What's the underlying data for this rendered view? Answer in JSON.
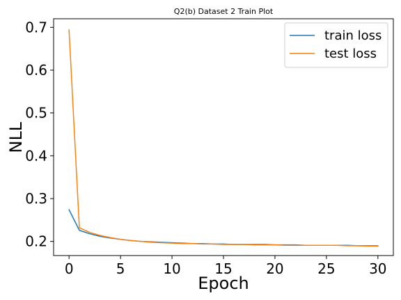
{
  "chart_data": {
    "type": "line",
    "title": "Q2(b) Dataset 2 Train Plot",
    "xlabel": "Epoch",
    "ylabel": "NLL",
    "xlim": [
      -1.5,
      31.5
    ],
    "ylim": [
      0.167,
      0.72
    ],
    "xticks": [
      0,
      5,
      10,
      15,
      20,
      25,
      30
    ],
    "yticks": [
      0.2,
      0.3,
      0.4,
      0.5,
      0.6,
      0.7
    ],
    "xtick_labels": [
      "0",
      "5",
      "10",
      "15",
      "20",
      "25",
      "30"
    ],
    "ytick_labels": [
      "0.2",
      "0.3",
      "0.4",
      "0.5",
      "0.6",
      "0.7"
    ],
    "grid": false,
    "legend_position": "top-right",
    "x": [
      0,
      1,
      2,
      3,
      4,
      5,
      6,
      7,
      8,
      9,
      10,
      11,
      12,
      13,
      14,
      15,
      16,
      17,
      18,
      19,
      20,
      21,
      22,
      23,
      24,
      25,
      26,
      27,
      28,
      29,
      30
    ],
    "series": [
      {
        "name": "train loss",
        "color": "#1f77b4",
        "values": [
          0.274,
          0.226,
          0.218,
          0.212,
          0.208,
          0.205,
          0.202,
          0.2,
          0.199,
          0.198,
          0.197,
          0.196,
          0.195,
          0.195,
          0.194,
          0.194,
          0.193,
          0.193,
          0.193,
          0.193,
          0.192,
          0.192,
          0.192,
          0.191,
          0.191,
          0.191,
          0.191,
          0.191,
          0.19,
          0.19,
          0.19
        ]
      },
      {
        "name": "test loss",
        "color": "#ff7f0e",
        "values": [
          0.694,
          0.232,
          0.221,
          0.214,
          0.209,
          0.205,
          0.202,
          0.2,
          0.198,
          0.197,
          0.196,
          0.195,
          0.195,
          0.194,
          0.194,
          0.193,
          0.193,
          0.193,
          0.192,
          0.192,
          0.192,
          0.191,
          0.191,
          0.191,
          0.191,
          0.191,
          0.191,
          0.19,
          0.19,
          0.189,
          0.189
        ]
      }
    ]
  }
}
